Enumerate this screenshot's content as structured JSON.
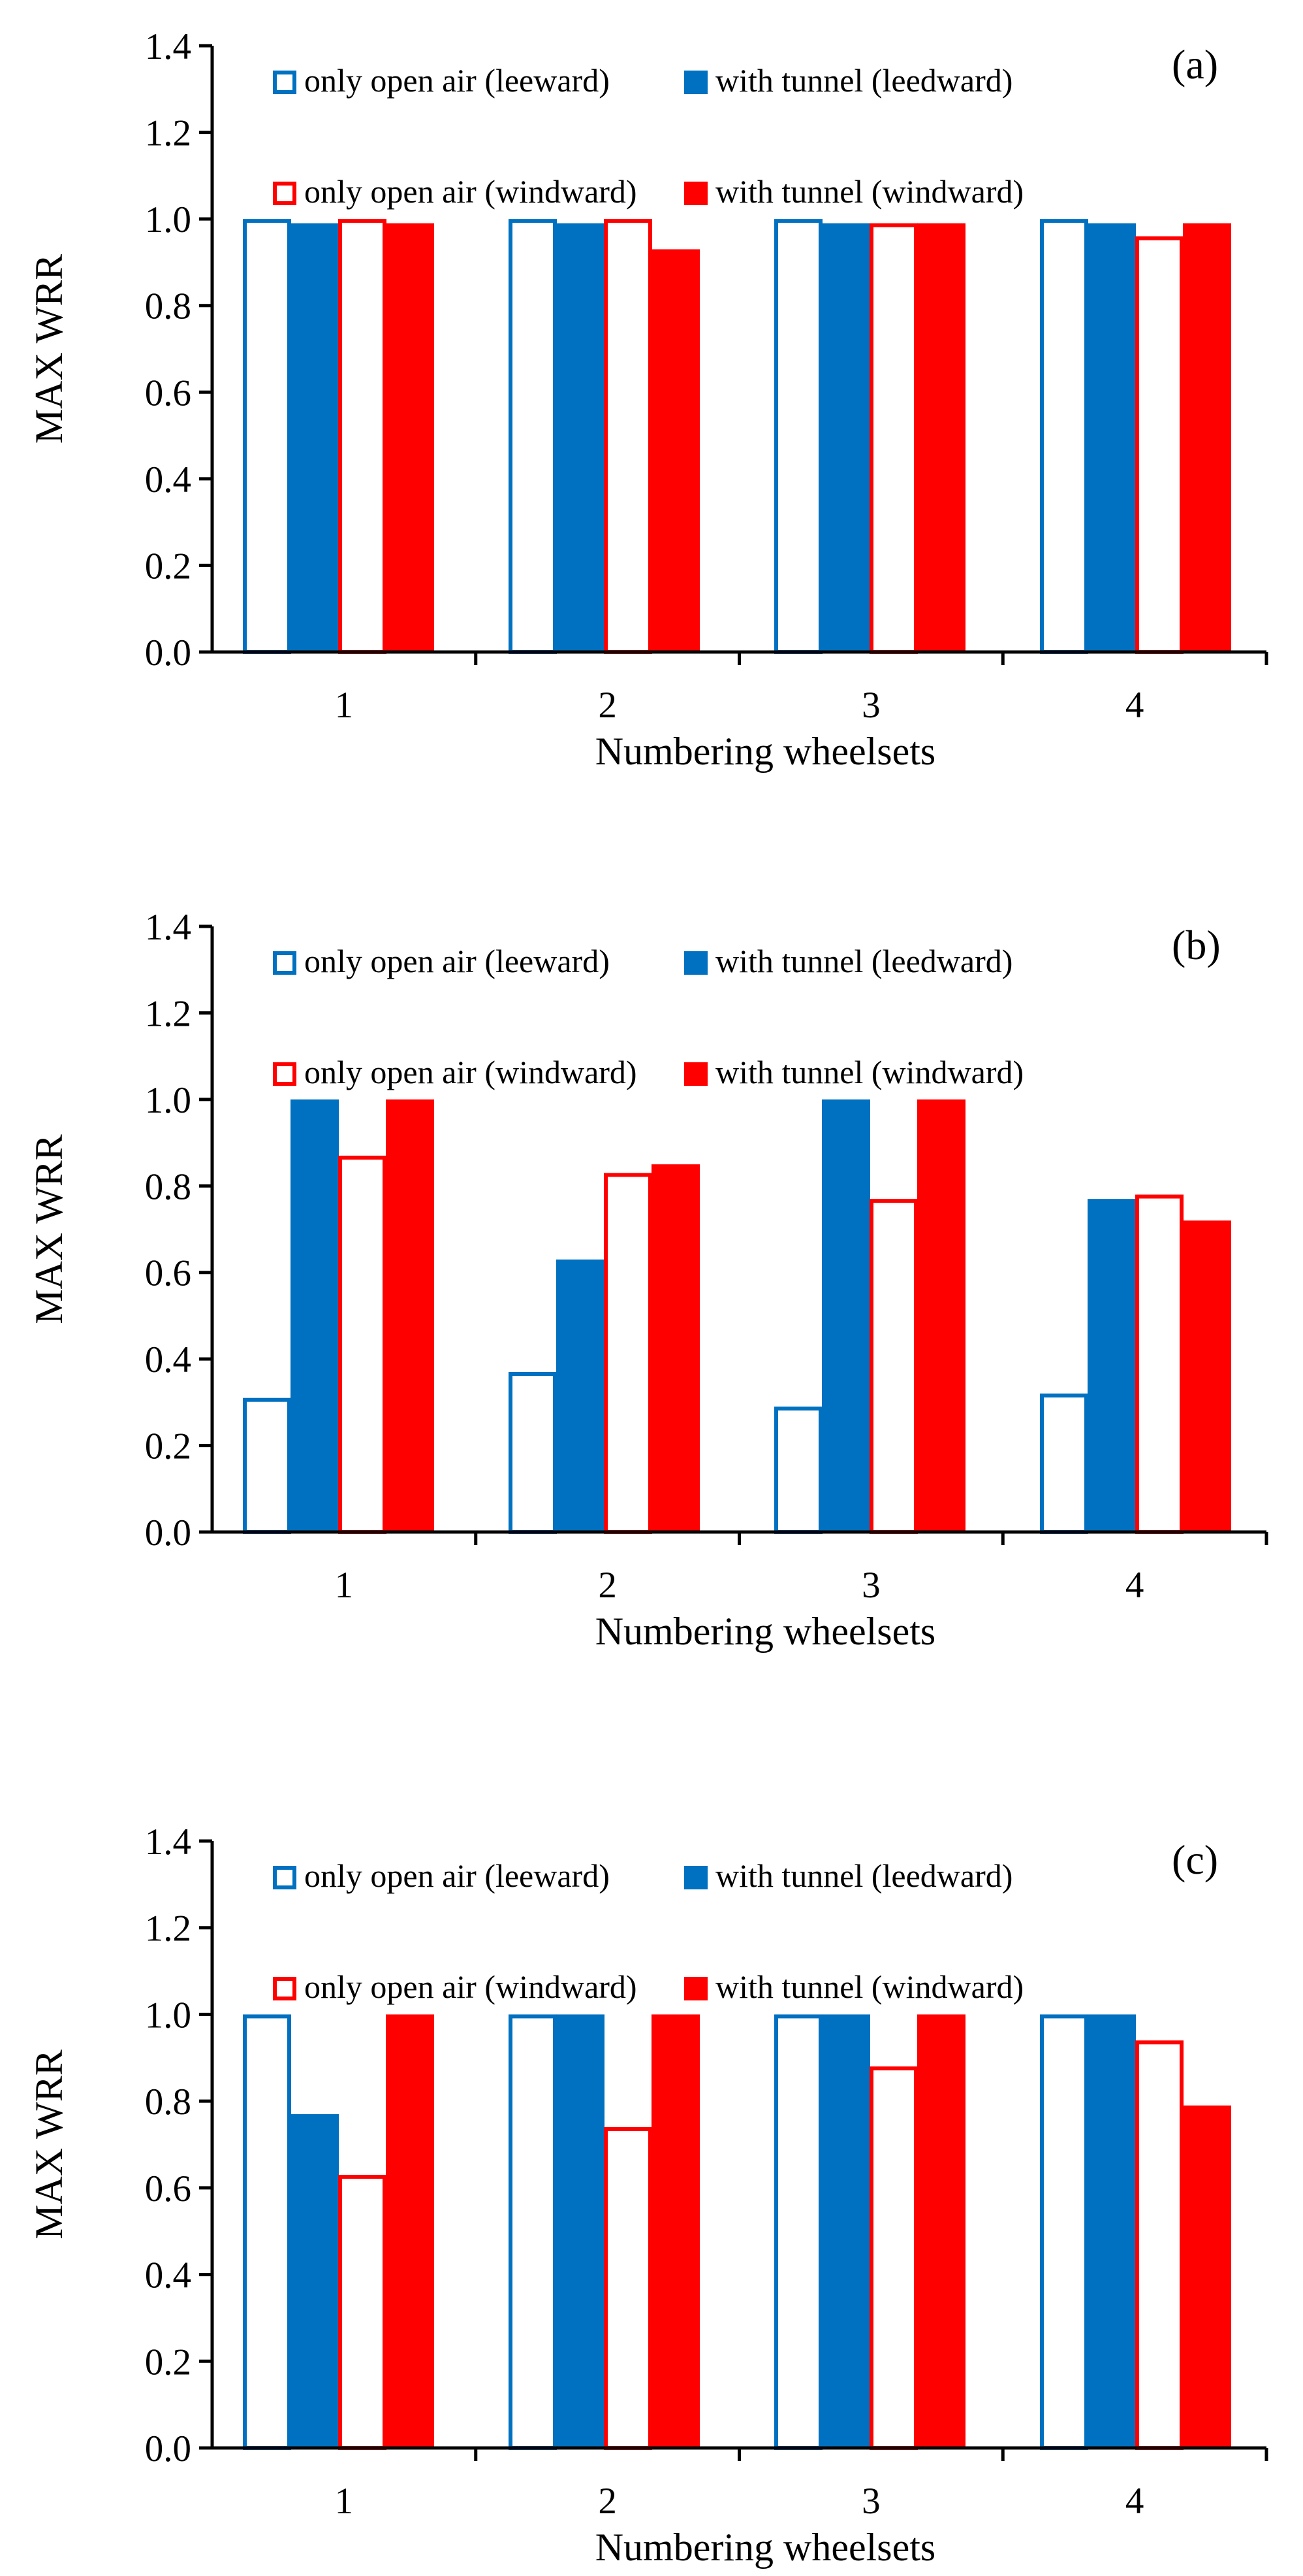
{
  "colors": {
    "blue": "#0070c0",
    "red": "#ff0000",
    "axis": "#000000",
    "background": "#ffffff"
  },
  "chart_data": [
    {
      "type": "bar",
      "panel_label": "(a)",
      "categories": [
        "1",
        "2",
        "3",
        "4"
      ],
      "series": [
        {
          "name": "only open air (leeward)",
          "style": "outline",
          "color": "#0070c0",
          "values": [
            1.0,
            1.0,
            1.0,
            1.0
          ]
        },
        {
          "name": "with tunnel (leedward)",
          "style": "filled",
          "color": "#0070c0",
          "values": [
            0.99,
            0.99,
            0.99,
            0.99
          ]
        },
        {
          "name": "only open air (windward)",
          "style": "outline",
          "color": "#ff0000",
          "values": [
            1.0,
            1.0,
            0.99,
            0.96
          ]
        },
        {
          "name": "with tunnel (windward)",
          "style": "filled",
          "color": "#ff0000",
          "values": [
            0.99,
            0.93,
            0.99,
            0.99
          ]
        }
      ],
      "xlabel": "Numbering wheelsets",
      "ylabel": "MAX  WRR",
      "ylim": [
        0,
        1.4
      ],
      "yticks": [
        "0.0",
        "0.2",
        "0.4",
        "0.6",
        "0.8",
        "1.0",
        "1.2",
        "1.4"
      ],
      "legend": "top"
    },
    {
      "type": "bar",
      "panel_label": "(b)",
      "categories": [
        "1",
        "2",
        "3",
        "4"
      ],
      "series": [
        {
          "name": "only open air (leeward)",
          "style": "outline",
          "color": "#0070c0",
          "values": [
            0.31,
            0.37,
            0.29,
            0.32
          ]
        },
        {
          "name": "with tunnel (leedward)",
          "style": "filled",
          "color": "#0070c0",
          "values": [
            1.0,
            0.63,
            1.0,
            0.77
          ]
        },
        {
          "name": "only open air (windward)",
          "style": "outline",
          "color": "#ff0000",
          "values": [
            0.87,
            0.83,
            0.77,
            0.78
          ]
        },
        {
          "name": "with tunnel (windward)",
          "style": "filled",
          "color": "#ff0000",
          "values": [
            1.0,
            0.85,
            1.0,
            0.72
          ]
        }
      ],
      "xlabel": "Numbering wheelsets",
      "ylabel": "MAX  WRR",
      "ylim": [
        0,
        1.4
      ],
      "yticks": [
        "0.0",
        "0.2",
        "0.4",
        "0.6",
        "0.8",
        "1.0",
        "1.2",
        "1.4"
      ],
      "legend": "top"
    },
    {
      "type": "bar",
      "panel_label": "(c)",
      "categories": [
        "1",
        "2",
        "3",
        "4"
      ],
      "series": [
        {
          "name": "only open air (leeward)",
          "style": "outline",
          "color": "#0070c0",
          "values": [
            1.0,
            1.0,
            1.0,
            1.0
          ]
        },
        {
          "name": "with tunnel (leedward)",
          "style": "filled",
          "color": "#0070c0",
          "values": [
            0.77,
            1.0,
            1.0,
            1.0
          ]
        },
        {
          "name": "only open air (windward)",
          "style": "outline",
          "color": "#ff0000",
          "values": [
            0.63,
            0.74,
            0.88,
            0.94
          ]
        },
        {
          "name": "with tunnel (windward)",
          "style": "filled",
          "color": "#ff0000",
          "values": [
            1.0,
            1.0,
            1.0,
            0.79
          ]
        }
      ],
      "xlabel": "Numbering wheelsets",
      "ylabel": "MAX  WRR",
      "ylim": [
        0,
        1.4
      ],
      "yticks": [
        "0.0",
        "0.2",
        "0.4",
        "0.6",
        "0.8",
        "1.0",
        "1.2",
        "1.4"
      ],
      "legend": "top"
    }
  ]
}
